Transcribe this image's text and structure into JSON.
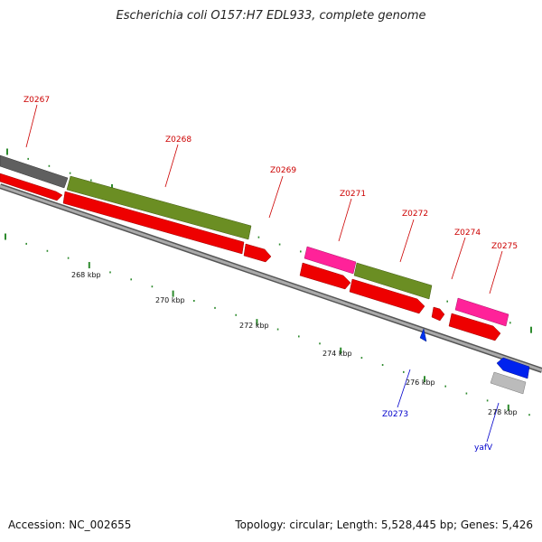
{
  "title": "Escherichia coli O157:H7 EDL933, complete genome",
  "footer": {
    "accession": "Accession: NC_002655",
    "summary": "Topology: circular; Length: 5,528,445 bp; Genes: 5,426"
  },
  "colors": {
    "forward_label": "#cc0000",
    "reverse_label": "#0000cc",
    "tick": "#2e8b2e",
    "backbone": "#888888"
  },
  "scale_labels": [
    "268 kbp",
    "270 kbp",
    "272 kbp",
    "274 kbp",
    "276 kbp",
    "278 kbp"
  ],
  "genes": [
    {
      "name": "Z0267",
      "strand": "forward"
    },
    {
      "name": "Z0268",
      "strand": "forward"
    },
    {
      "name": "Z0269",
      "strand": "forward"
    },
    {
      "name": "Z0271",
      "strand": "forward"
    },
    {
      "name": "Z0272",
      "strand": "forward"
    },
    {
      "name": "Z0274",
      "strand": "forward"
    },
    {
      "name": "Z0275",
      "strand": "forward"
    },
    {
      "name": "Z0273",
      "strand": "reverse"
    },
    {
      "name": "yafV",
      "strand": "reverse"
    }
  ]
}
